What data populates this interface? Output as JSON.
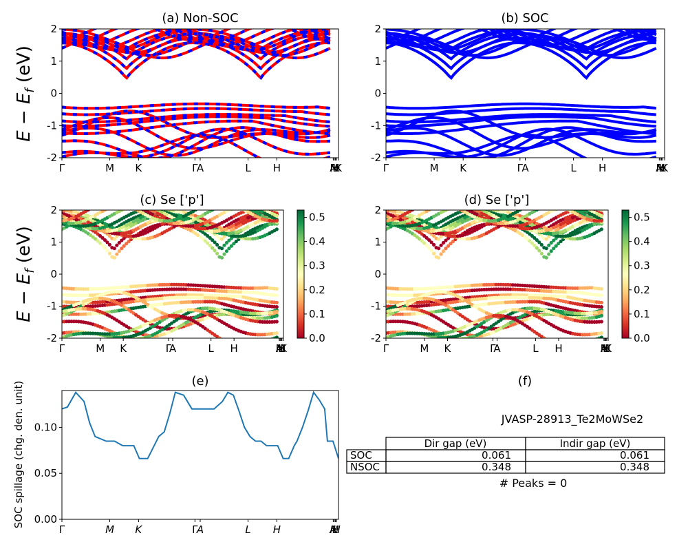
{
  "figure": {
    "ylabel_main": "E − E",
    "ylabel_sub": "f",
    "ylabel_unit": " (eV)",
    "spillage_ylabel": "SOC spillage (chg. den. unit)"
  },
  "band_ticks": [
    "Γ",
    "M",
    "K",
    "Γ",
    "A",
    "L",
    "H",
    "A",
    "M",
    "L",
    "H",
    "K"
  ],
  "band_tick_pos": [
    0,
    0.173,
    0.277,
    0.481,
    0.5,
    0.673,
    0.777,
    0.981,
    0.985,
    0.989,
    0.993,
    1.0
  ],
  "chart_data": [
    {
      "id": "a",
      "type": "line",
      "title": "(a) Non-SOC",
      "ylim": [
        -2,
        2
      ],
      "yticks": [
        -2,
        -1,
        0,
        1,
        2
      ],
      "series": [
        {
          "name": "",
          "color": "#ff0000",
          "style": "solid"
        },
        {
          "name": "",
          "color": "#0000ff",
          "style": "dashed"
        }
      ]
    },
    {
      "id": "b",
      "type": "line",
      "title": "(b) SOC",
      "ylim": [
        -2,
        2
      ],
      "yticks": [
        -2,
        -1,
        0,
        1,
        2
      ],
      "series": [
        {
          "name": "",
          "color": "#0000ff",
          "style": "solid"
        }
      ]
    },
    {
      "id": "c",
      "type": "scatter",
      "title": "(c)  Se ['p']",
      "ylim": [
        -2,
        2
      ],
      "yticks": [
        -2,
        -1,
        0,
        1,
        2
      ],
      "colorbar": {
        "range": [
          0.0,
          0.53
        ],
        "ticks": [
          "0.0",
          "0.1",
          "0.2",
          "0.3",
          "0.4",
          "0.5"
        ],
        "colormap": "RdYlGn"
      }
    },
    {
      "id": "d",
      "type": "scatter",
      "title": "(d) Se ['p']",
      "ylim": [
        -2,
        2
      ],
      "yticks": [
        -2,
        -1,
        0,
        1,
        2
      ],
      "colorbar": {
        "range": [
          0.0,
          0.53
        ],
        "ticks": [
          "0.0",
          "0.1",
          "0.2",
          "0.3",
          "0.4",
          "0.5"
        ],
        "colormap": "RdYlGn"
      }
    },
    {
      "id": "e",
      "type": "line",
      "title": "(e)",
      "ylabel": "SOC spillage (chg. den. unit)",
      "ylim": [
        0,
        0.14
      ],
      "yticks": [
        "0.00",
        "0.05",
        "0.10"
      ],
      "xticks": [
        "Γ",
        "M",
        "K",
        "Γ",
        "A",
        "L",
        "H",
        "A",
        "M",
        "L",
        "H"
      ],
      "series": [
        {
          "name": "",
          "color": "#1f77b4",
          "x": [
            0,
            0.02,
            0.05,
            0.08,
            0.1,
            0.12,
            0.16,
            0.19,
            0.22,
            0.26,
            0.28,
            0.3,
            0.31,
            0.33,
            0.35,
            0.37,
            0.39,
            0.41,
            0.44,
            0.47,
            0.49,
            0.52,
            0.55,
            0.58,
            0.6,
            0.62,
            0.64,
            0.66,
            0.68,
            0.7,
            0.72,
            0.74,
            0.76,
            0.78,
            0.8,
            0.82,
            0.84,
            0.85,
            0.87,
            0.89,
            0.91,
            0.93,
            0.95,
            0.96,
            0.98,
            1.0
          ],
          "y": [
            0.12,
            0.122,
            0.138,
            0.128,
            0.105,
            0.09,
            0.085,
            0.085,
            0.08,
            0.08,
            0.066,
            0.066,
            0.066,
            0.078,
            0.09,
            0.095,
            0.115,
            0.138,
            0.135,
            0.12,
            0.12,
            0.12,
            0.12,
            0.128,
            0.138,
            0.135,
            0.118,
            0.1,
            0.09,
            0.085,
            0.085,
            0.08,
            0.08,
            0.08,
            0.066,
            0.066,
            0.08,
            0.085,
            0.1,
            0.118,
            0.138,
            0.13,
            0.12,
            0.085,
            0.085,
            0.066
          ]
        }
      ]
    }
  ],
  "info_panel": {
    "title": "(f)",
    "name": "JVASP-28913_Te2MoWSe2",
    "table": {
      "headers": [
        "Dir gap (eV)",
        "Indir gap (eV)"
      ],
      "rows": [
        {
          "label": "SOC",
          "dir": "0.061",
          "indir": "0.061"
        },
        {
          "label": "NSOC",
          "dir": "0.348",
          "indir": "0.348"
        }
      ]
    },
    "peaks": "# Peaks = 0"
  }
}
